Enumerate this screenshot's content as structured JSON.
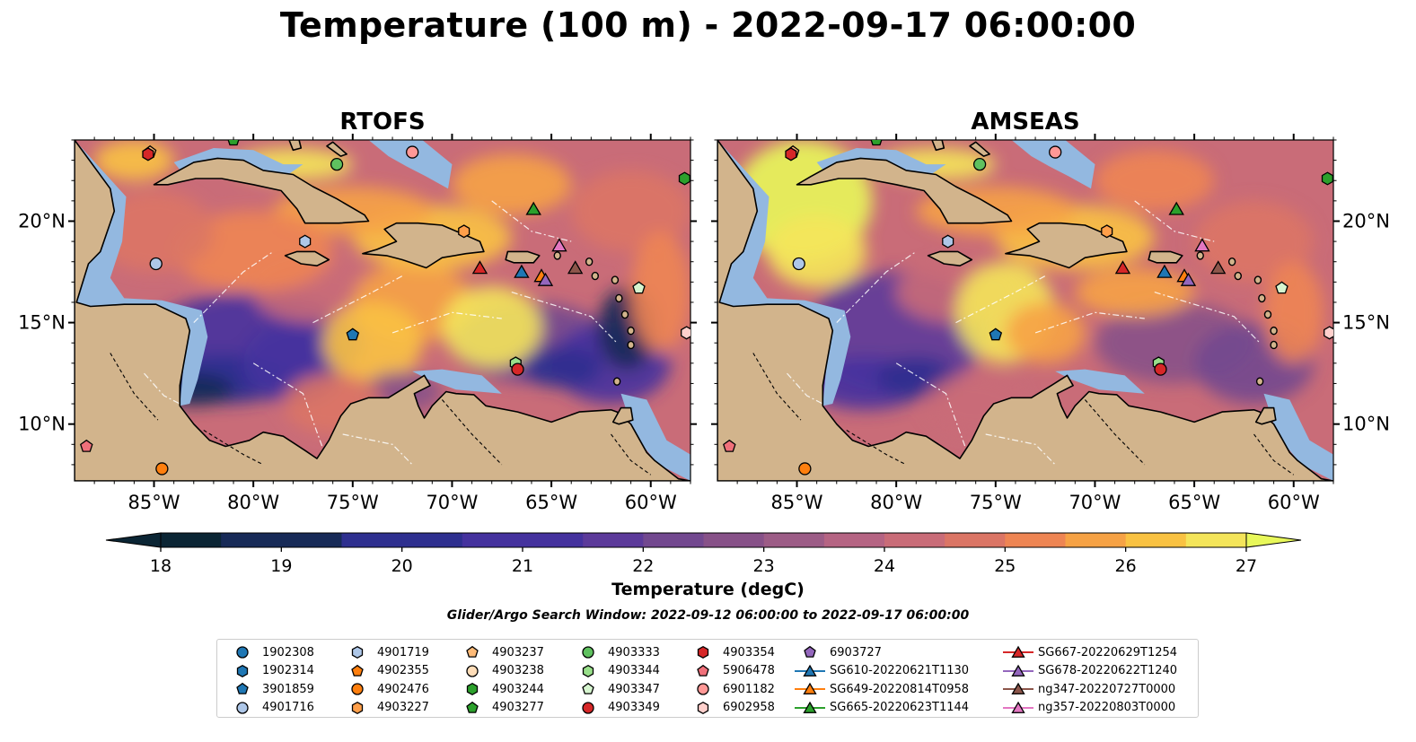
{
  "title": "Temperature (100 m) - 2022-09-17 06:00:00",
  "panels": [
    {
      "title": "RTOFS"
    },
    {
      "title": "AMSEAS"
    }
  ],
  "colors": {
    "land": "#d2b48c",
    "shallow": "#93b8e0",
    "cmap": [
      "#0b2534",
      "#172a57",
      "#2e2f8f",
      "#45329e",
      "#5c3a9a",
      "#72488f",
      "#875188",
      "#9c5c86",
      "#b56483",
      "#c96c78",
      "#db7565",
      "#ee8553",
      "#f6a245",
      "#f9c242",
      "#f4e55a",
      "#e8f85a"
    ]
  },
  "colorbar": {
    "label": "Temperature (degC)",
    "ticks": [
      "18",
      "19",
      "20",
      "21",
      "22",
      "23",
      "24",
      "25",
      "26",
      "27"
    ]
  },
  "search_window": "Glider/Argo Search Window: 2022-09-12 06:00:00 to 2022-09-17 06:00:00",
  "axes": {
    "x_ticks": [
      "85°W",
      "80°W",
      "75°W",
      "70°W",
      "65°W",
      "60°W"
    ],
    "y_ticks": [
      "20°N",
      "15°N",
      "10°N"
    ]
  },
  "chart_data": {
    "type": "heatmap",
    "variable": "Temperature (100 m)",
    "units": "degC",
    "colorbar_range": [
      18,
      27
    ],
    "extent": {
      "lon": [
        -89,
        -58
      ],
      "lat": [
        7.2,
        24
      ]
    },
    "grid": true,
    "legend_placement": "bottom",
    "argo_floats": [
      {
        "id": "1902308",
        "marker": "circle",
        "color": "#1f77b4"
      },
      {
        "id": "1902314",
        "marker": "hexagon",
        "color": "#1f77b4"
      },
      {
        "id": "3901859",
        "marker": "pentagon",
        "color": "#1f77b4",
        "lon": -75.0,
        "lat": 14.4
      },
      {
        "id": "4901716",
        "marker": "circle",
        "color": "#aec7e8",
        "lon": -84.9,
        "lat": 17.9
      },
      {
        "id": "4901719",
        "marker": "hexagon",
        "color": "#aec7e8",
        "lon": -77.4,
        "lat": 19.0
      },
      {
        "id": "4902355",
        "marker": "pentagon",
        "color": "#ff7f0e"
      },
      {
        "id": "4902476",
        "marker": "circle",
        "color": "#ff7f0e",
        "lon": -84.6,
        "lat": 7.8
      },
      {
        "id": "4903227",
        "marker": "hexagon",
        "color": "#ff9f4a",
        "lon": -69.4,
        "lat": 19.5
      },
      {
        "id": "4903237",
        "marker": "pentagon",
        "color": "#ffbb78",
        "lon": -85.2,
        "lat": 23.4
      },
      {
        "id": "4903238",
        "marker": "circle",
        "color": "#ffddb8"
      },
      {
        "id": "4903244",
        "marker": "hexagon",
        "color": "#2ca02c",
        "lon": -58.3,
        "lat": 22.1
      },
      {
        "id": "4903277",
        "marker": "pentagon",
        "color": "#2ca02c",
        "lon": -81.0,
        "lat": 24.0
      },
      {
        "id": "4903333",
        "marker": "circle",
        "color": "#5fc15f",
        "lon": -75.8,
        "lat": 22.8
      },
      {
        "id": "4903344",
        "marker": "hexagon",
        "color": "#98df8a",
        "lon": -66.8,
        "lat": 13.0
      },
      {
        "id": "4903347",
        "marker": "pentagon",
        "color": "#d6f5cf",
        "lon": -60.6,
        "lat": 16.7
      },
      {
        "id": "4903349",
        "marker": "circle",
        "color": "#d62728",
        "lon": -66.7,
        "lat": 12.7
      },
      {
        "id": "4903354",
        "marker": "hexagon",
        "color": "#d62728",
        "lon": -85.3,
        "lat": 23.3
      },
      {
        "id": "5906478",
        "marker": "pentagon",
        "color": "#f0707a",
        "lon": -88.4,
        "lat": 8.9
      },
      {
        "id": "6901182",
        "marker": "circle",
        "color": "#ff9896",
        "lon": -72.0,
        "lat": 23.4
      },
      {
        "id": "6902958",
        "marker": "hexagon",
        "color": "#ffd0cc",
        "lon": -58.2,
        "lat": 14.5
      },
      {
        "id": "6903727",
        "marker": "pentagon",
        "color": "#9467bd"
      }
    ],
    "gliders": [
      {
        "id": "SG610-20220621T1130",
        "marker": "triangle",
        "color": "#1f77b4",
        "lon": -66.5,
        "lat": 17.5
      },
      {
        "id": "SG649-20220814T0958",
        "marker": "triangle",
        "color": "#ff7f0e",
        "lon": -65.5,
        "lat": 17.3
      },
      {
        "id": "SG665-20220623T1144",
        "marker": "triangle",
        "color": "#2ca02c",
        "lon": -65.9,
        "lat": 20.6
      },
      {
        "id": "SG667-20220629T1254",
        "marker": "triangle",
        "color": "#d62728",
        "lon": -68.6,
        "lat": 17.7
      },
      {
        "id": "SG678-20220622T1240",
        "marker": "triangle",
        "color": "#9467bd",
        "lon": -65.3,
        "lat": 17.1
      },
      {
        "id": "ng347-20220727T0000",
        "marker": "triangle",
        "color": "#8c564b",
        "lon": -63.8,
        "lat": 17.7
      },
      {
        "id": "ng357-20220803T0000",
        "marker": "triangle",
        "color": "#e377c2",
        "lon": -64.6,
        "lat": 18.8
      }
    ]
  }
}
